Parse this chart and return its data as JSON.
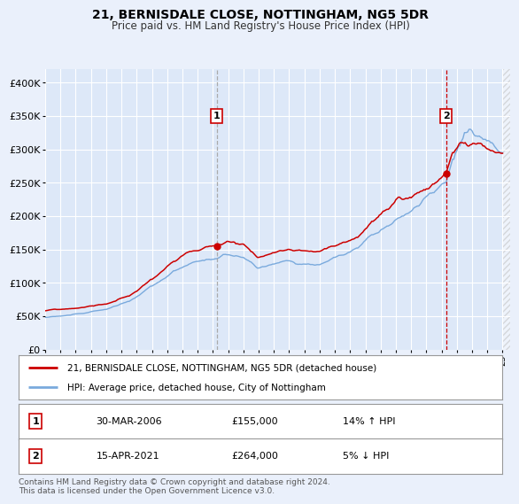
{
  "title": "21, BERNISDALE CLOSE, NOTTINGHAM, NG5 5DR",
  "subtitle": "Price paid vs. HM Land Registry's House Price Index (HPI)",
  "background_color": "#eaf0fb",
  "plot_bg_color": "#dde8f8",
  "grid_color": "#ffffff",
  "red_line_color": "#cc0000",
  "blue_line_color": "#7aaadd",
  "ylim": [
    0,
    420000
  ],
  "yticks": [
    0,
    50000,
    100000,
    150000,
    200000,
    250000,
    300000,
    350000,
    400000
  ],
  "ytick_labels": [
    "£0",
    "£50K",
    "£100K",
    "£150K",
    "£200K",
    "£250K",
    "£300K",
    "£350K",
    "£400K"
  ],
  "marker1_year": 2006.25,
  "marker1_price": 155000,
  "marker2_year": 2021.29,
  "marker2_price": 264000,
  "legend_red": "21, BERNISDALE CLOSE, NOTTINGHAM, NG5 5DR (detached house)",
  "legend_blue": "HPI: Average price, detached house, City of Nottingham",
  "table_row1_num": "1",
  "table_row1_date": "30-MAR-2006",
  "table_row1_price": "£155,000",
  "table_row1_hpi": "14% ↑ HPI",
  "table_row2_num": "2",
  "table_row2_date": "15-APR-2021",
  "table_row2_price": "£264,000",
  "table_row2_hpi": "5% ↓ HPI",
  "footer": "Contains HM Land Registry data © Crown copyright and database right 2024.\nThis data is licensed under the Open Government Licence v3.0.",
  "xmin": 1995.0,
  "xmax": 2025.5
}
